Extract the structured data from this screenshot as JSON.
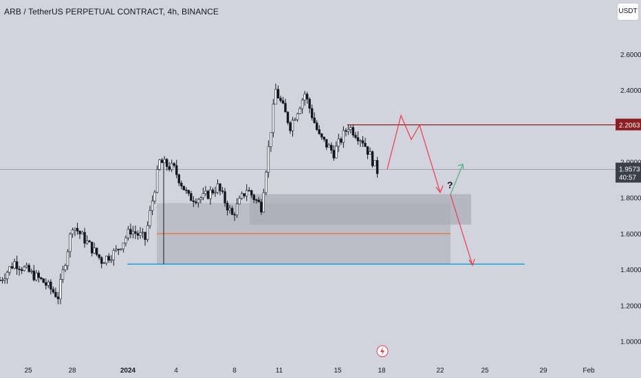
{
  "header": {
    "title": "ARB / TetherUS PERPETUAL CONTRACT, 4h, BINANCE",
    "currency_label": "USDT"
  },
  "price_axis": {
    "tick_labels": [
      "2.6000",
      "2.4000",
      "2.0000",
      "1.8000",
      "1.6000",
      "1.4000",
      "1.2000",
      "1.0000"
    ],
    "tick_values": [
      2.6,
      2.4,
      2.0,
      1.8,
      1.6,
      1.4,
      1.2,
      1.0
    ],
    "current_price": "1.9573",
    "countdown": "40:57",
    "level_label": "2.2063"
  },
  "time_axis": {
    "labels": [
      "25",
      "28",
      "2024",
      "4",
      "8",
      "11",
      "15",
      "18",
      "22",
      "25",
      "29",
      "Feb"
    ]
  },
  "annotations": {
    "question_mark": "?",
    "bolt_icon": "lightning-icon"
  },
  "colors": {
    "background": "#d1d4dc",
    "candle": "#131722",
    "resistance": "#8b1d23",
    "support": "#00a3d9",
    "orange_line": "#f56c2c",
    "projection_red": "#f23645",
    "projection_green": "#4caf7d",
    "zone": "#b2b5be"
  },
  "chart_data": {
    "type": "candlestick",
    "title": "ARB / TetherUS PERPETUAL CONTRACT, 4h, BINANCE",
    "ylabel": "USDT",
    "ylim": [
      0.95,
      2.85
    ],
    "date_range": [
      "Dec 23",
      "Feb 1"
    ],
    "resistance_level": 2.2063,
    "support_level": 1.43,
    "mid_level": 1.6,
    "current_price": 1.9573,
    "demand_zone": [
      1.43,
      1.77
    ],
    "upper_zone": [
      1.65,
      1.82
    ],
    "swing_points": [
      {
        "x": "Dec 23",
        "y": 1.34
      },
      {
        "x": "Dec 24",
        "y": 1.44
      },
      {
        "x": "Dec 26",
        "y": 1.33
      },
      {
        "x": "Dec 27",
        "y": 1.25
      },
      {
        "x": "Dec 28",
        "y": 1.65
      },
      {
        "x": "Dec 30",
        "y": 1.45
      },
      {
        "x": "Dec 31",
        "y": 1.5
      },
      {
        "x": "Jan 1",
        "y": 1.62
      },
      {
        "x": "Jan 2",
        "y": 1.57
      },
      {
        "x": "Jan 3",
        "y": 2.0
      },
      {
        "x": "Jan 4",
        "y": 1.96
      },
      {
        "x": "Jan 5",
        "y": 1.8
      },
      {
        "x": "Jan 6",
        "y": 1.8
      },
      {
        "x": "Jan 7",
        "y": 1.86
      },
      {
        "x": "Jan 8",
        "y": 1.7
      },
      {
        "x": "Jan 9",
        "y": 1.85
      },
      {
        "x": "Jan 10",
        "y": 1.75
      },
      {
        "x": "Jan 11",
        "y": 2.4
      },
      {
        "x": "Jan 12",
        "y": 2.2
      },
      {
        "x": "Jan 13",
        "y": 2.38
      },
      {
        "x": "Jan 14",
        "y": 2.14
      },
      {
        "x": "Jan 15",
        "y": 2.05
      },
      {
        "x": "Jan 16",
        "y": 2.2
      },
      {
        "x": "Jan 17",
        "y": 2.12
      },
      {
        "x": "Jan 18",
        "y": 1.95
      }
    ]
  }
}
